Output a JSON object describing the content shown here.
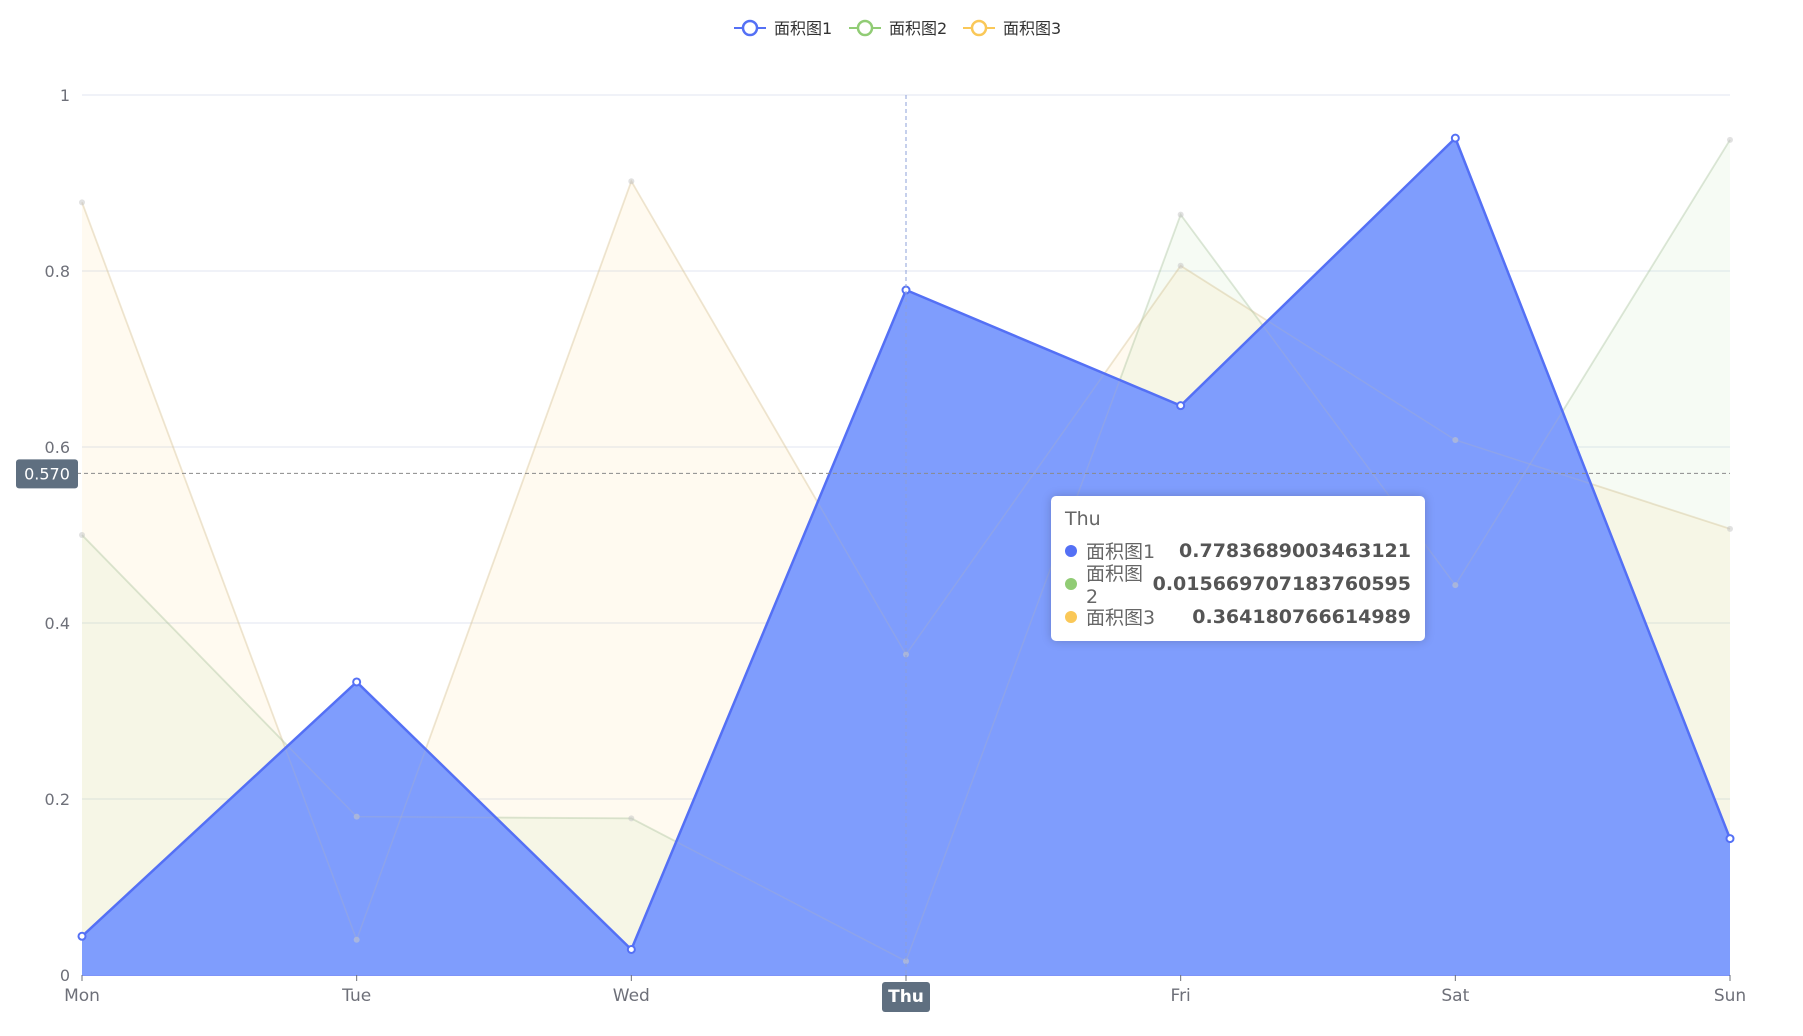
{
  "colors": {
    "series1": "#5470f5",
    "series1_fill": "#7f9dfd",
    "series2": "#91cc75",
    "series3": "#fac858",
    "axis_text": "#6e7079",
    "grid": "#e0e6f1",
    "pointer_badge": "#5f6f80"
  },
  "chart_data": {
    "type": "area",
    "categories": [
      "Mon",
      "Tue",
      "Wed",
      "Thu",
      "Fri",
      "Sat",
      "Sun"
    ],
    "ylim": [
      0,
      1
    ],
    "yticks": [
      "0",
      "0.2",
      "0.4",
      "0.6",
      "0.8",
      "1"
    ],
    "ytick_values": [
      0,
      0.2,
      0.4,
      0.6,
      0.8,
      1
    ],
    "grid": true,
    "legend_position": "top-center",
    "series": [
      {
        "name": "面积图1",
        "values": [
          0.044,
          0.333,
          0.029,
          0.7783689003463121,
          0.647,
          0.951,
          0.155
        ]
      },
      {
        "name": "面积图2",
        "values": [
          0.5,
          0.18,
          0.178,
          0.015669707183760595,
          0.864,
          0.443,
          0.949
        ]
      },
      {
        "name": "面积图3",
        "values": [
          0.878,
          0.04,
          0.902,
          0.364180766614989,
          0.806,
          0.608,
          0.507
        ]
      }
    ],
    "pointer_y_label": "0.570",
    "pointer_y_value": 0.57,
    "pointer_x_label": "Thu",
    "pointer_x_index": 3
  },
  "tooltip": {
    "title": "Thu",
    "rows": [
      {
        "name": "面积图1",
        "value": "0.7783689003463121"
      },
      {
        "name": "面积图2",
        "value": "0.015669707183760595"
      },
      {
        "name": "面积图3",
        "value": "0.364180766614989"
      }
    ]
  }
}
